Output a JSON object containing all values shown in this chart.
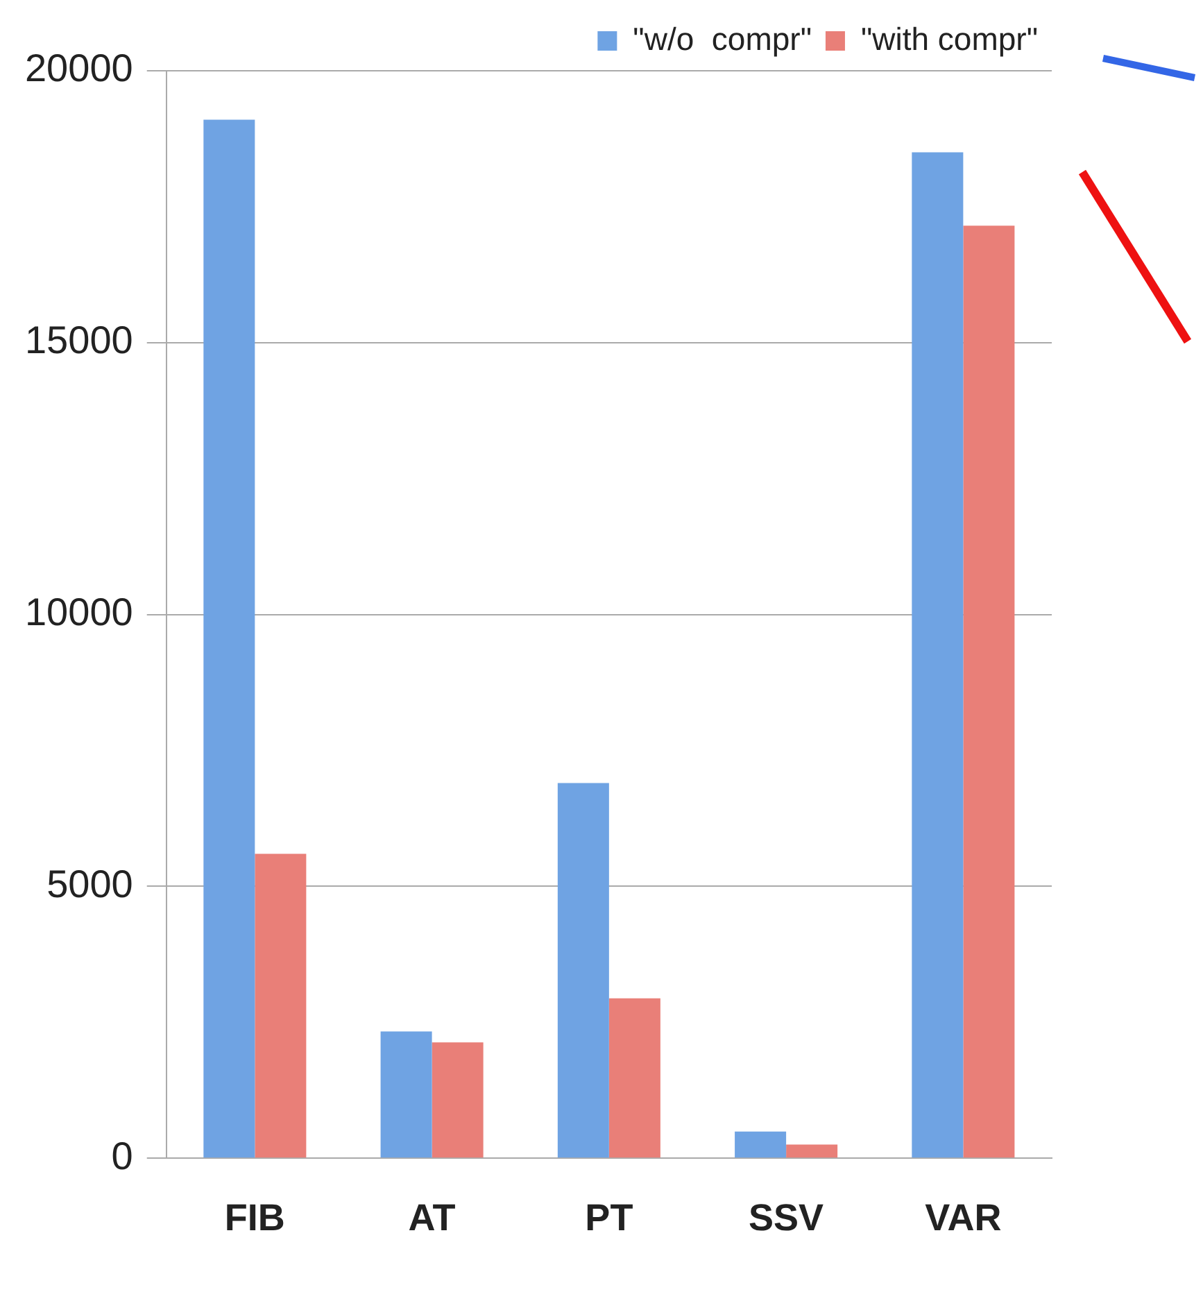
{
  "chart_data": {
    "type": "bar",
    "categories": [
      "FIB",
      "AT",
      "PT",
      "SSV",
      "VAR"
    ],
    "series": [
      {
        "name": "\"w/o  compr\"",
        "color": "#6fa3e3",
        "values": [
          19100,
          2330,
          6900,
          490,
          18500
        ]
      },
      {
        "name": "\"with compr\"",
        "color": "#e97f78",
        "values": [
          5600,
          2130,
          2940,
          250,
          17150
        ]
      }
    ],
    "ylim": [
      0,
      20000
    ],
    "yticks": [
      0,
      5000,
      10000,
      15000,
      20000
    ],
    "grid": "y",
    "legend": "top right"
  }
}
